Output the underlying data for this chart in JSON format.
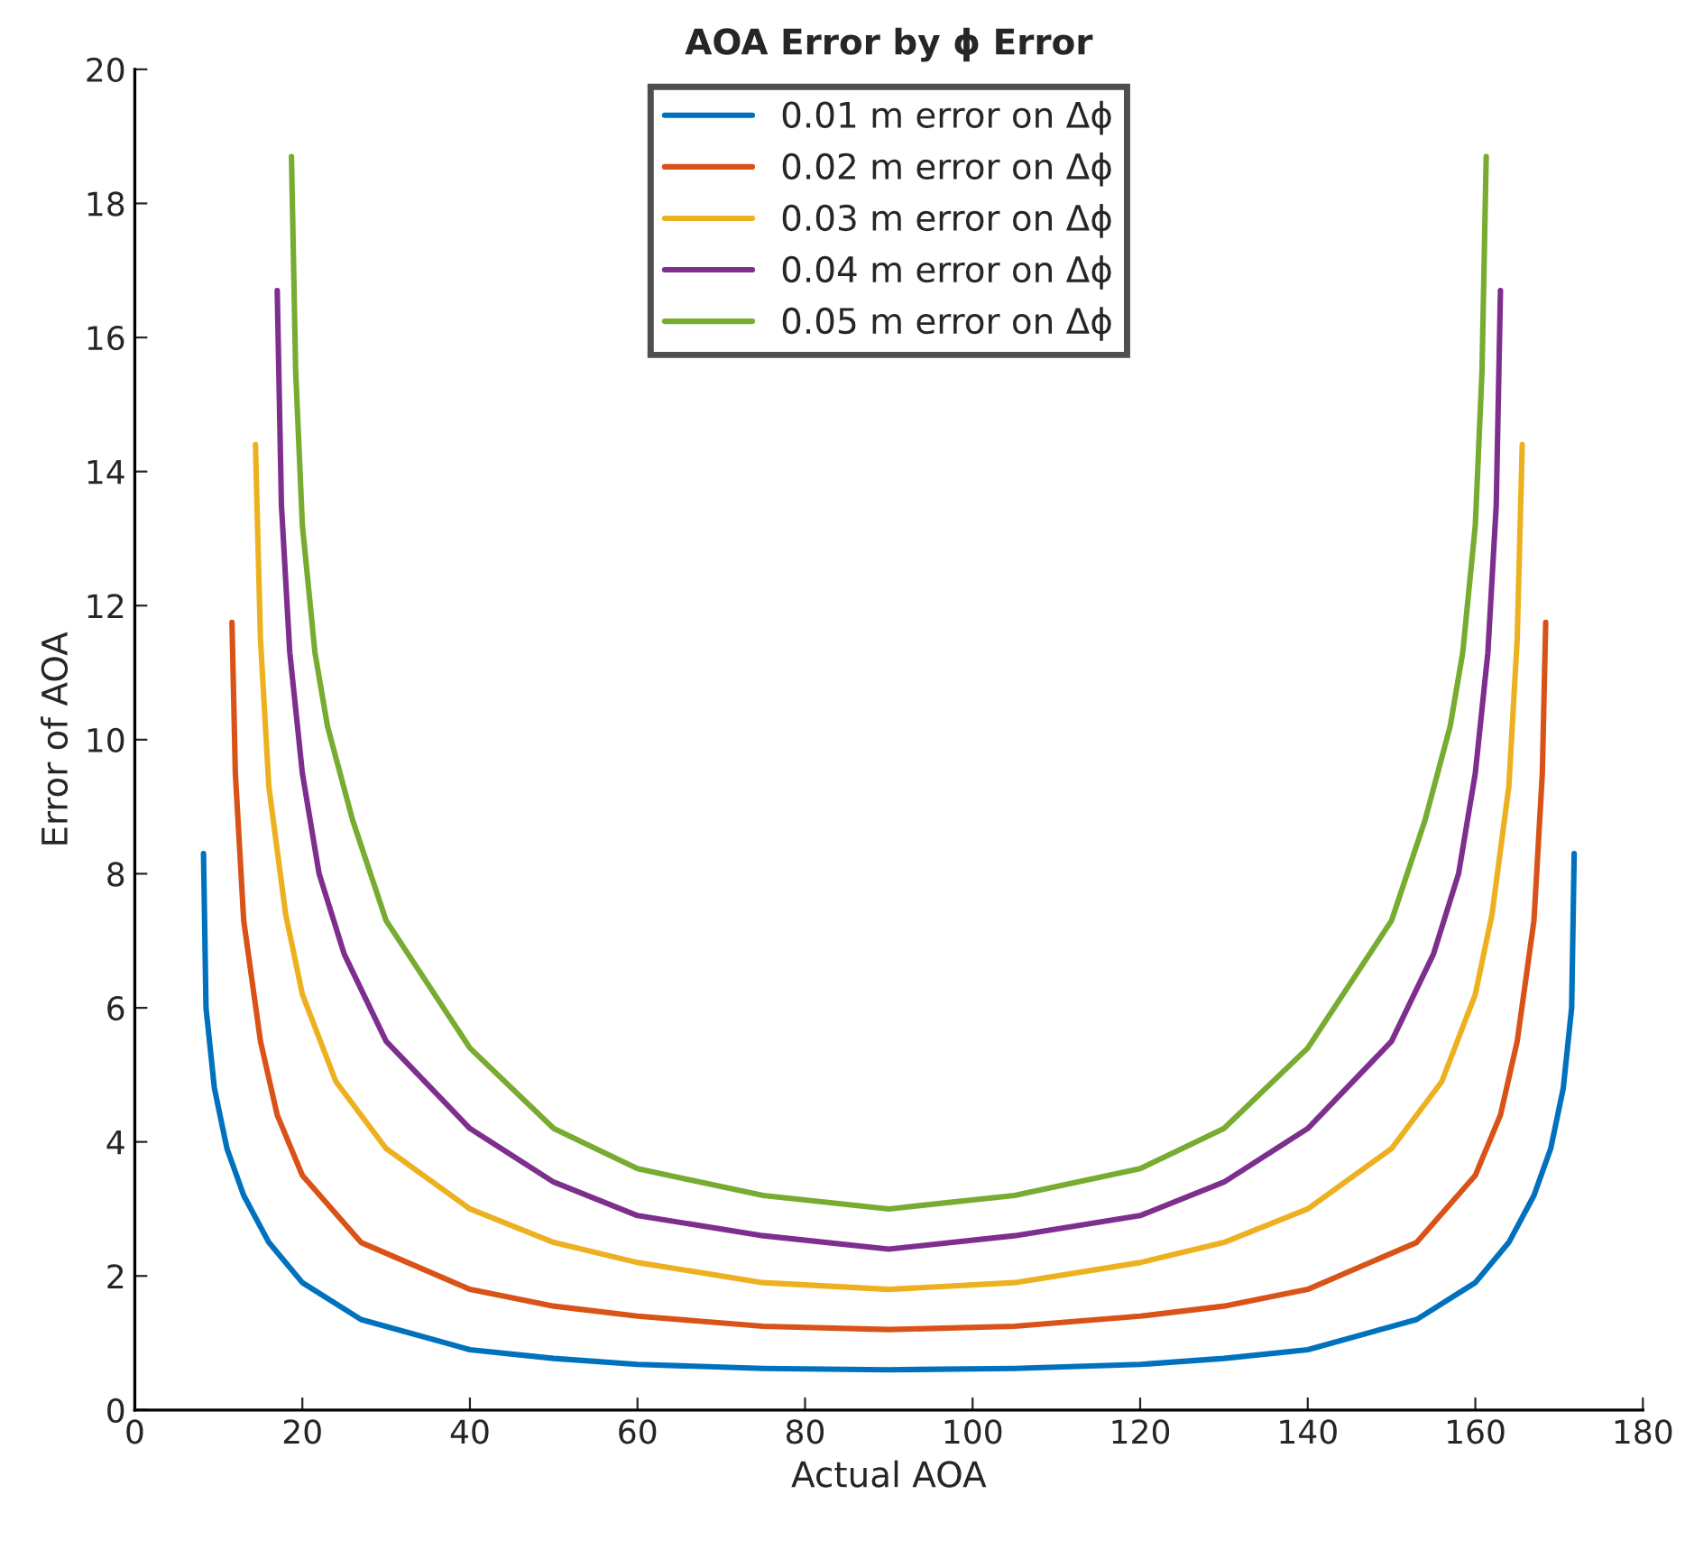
{
  "chart_data": {
    "type": "line",
    "title": "AOA Error by ϕ Error",
    "xlabel": "Actual AOA",
    "ylabel": "Error of AOA",
    "xlim": [
      0,
      180
    ],
    "xticks": [
      0,
      20,
      40,
      60,
      80,
      100,
      120,
      140,
      160,
      180
    ],
    "ylim": [
      0,
      20
    ],
    "yticks": [
      0,
      2,
      4,
      6,
      8,
      10,
      12,
      14,
      16,
      18,
      20
    ],
    "grid": false,
    "legend": "top",
    "marker": "none",
    "line_style": "solid",
    "series": [
      {
        "name": "0.01 m error on Δϕ",
        "color": "#0072bd",
        "x": [
          8.2,
          8.5,
          9.5,
          11,
          13,
          16,
          20,
          27,
          40,
          50,
          60,
          75,
          90,
          105,
          120,
          130,
          140,
          153,
          160,
          164,
          167,
          169,
          170.5,
          171.5,
          171.8
        ],
        "values": [
          8.3,
          6.0,
          4.8,
          3.9,
          3.2,
          2.5,
          1.9,
          1.35,
          0.9,
          0.77,
          0.68,
          0.62,
          0.6,
          0.62,
          0.68,
          0.77,
          0.9,
          1.35,
          1.9,
          2.5,
          3.2,
          3.9,
          4.8,
          6.0,
          8.3
        ]
      },
      {
        "name": "0.02 m error on Δϕ",
        "color": "#d95319",
        "x": [
          11.6,
          12,
          13,
          15,
          17,
          20,
          27,
          40,
          50,
          60,
          75,
          90,
          105,
          120,
          130,
          140,
          153,
          160,
          163,
          165,
          167,
          168,
          168.4
        ],
        "values": [
          11.75,
          9.5,
          7.3,
          5.5,
          4.4,
          3.5,
          2.5,
          1.8,
          1.55,
          1.4,
          1.25,
          1.2,
          1.25,
          1.4,
          1.55,
          1.8,
          2.5,
          3.5,
          4.4,
          5.5,
          7.3,
          9.5,
          11.75
        ]
      },
      {
        "name": "0.03 m error on Δϕ",
        "color": "#edb120",
        "x": [
          14.4,
          15,
          16,
          18,
          20,
          24,
          30,
          40,
          50,
          60,
          75,
          90,
          105,
          120,
          130,
          140,
          150,
          156,
          160,
          162,
          164,
          165,
          165.6
        ],
        "values": [
          14.4,
          11.5,
          9.3,
          7.4,
          6.2,
          4.9,
          3.9,
          3.0,
          2.5,
          2.2,
          1.9,
          1.8,
          1.9,
          2.2,
          2.5,
          3.0,
          3.9,
          4.9,
          6.2,
          7.4,
          9.3,
          11.5,
          14.4
        ]
      },
      {
        "name": "0.04 m error on Δϕ",
        "color": "#7e2f8e",
        "x": [
          17,
          17.5,
          18.5,
          20,
          22,
          25,
          30,
          40,
          50,
          60,
          75,
          90,
          105,
          120,
          130,
          140,
          150,
          155,
          158,
          160,
          161.5,
          162.5,
          163
        ],
        "values": [
          16.7,
          13.5,
          11.3,
          9.5,
          8.0,
          6.8,
          5.5,
          4.2,
          3.4,
          2.9,
          2.6,
          2.4,
          2.6,
          2.9,
          3.4,
          4.2,
          5.5,
          6.8,
          8.0,
          9.5,
          11.3,
          13.5,
          16.7
        ]
      },
      {
        "name": "0.05 m error on Δϕ",
        "color": "#77ac30",
        "x": [
          18.7,
          19.2,
          20,
          21.5,
          23,
          26,
          30,
          40,
          50,
          60,
          75,
          90,
          105,
          120,
          130,
          140,
          150,
          154,
          157,
          158.5,
          160,
          160.8,
          161.3
        ],
        "values": [
          18.7,
          15.5,
          13.2,
          11.3,
          10.2,
          8.8,
          7.3,
          5.4,
          4.2,
          3.6,
          3.2,
          3.0,
          3.2,
          3.6,
          4.2,
          5.4,
          7.3,
          8.8,
          10.2,
          11.3,
          13.2,
          15.5,
          18.7
        ]
      }
    ]
  }
}
